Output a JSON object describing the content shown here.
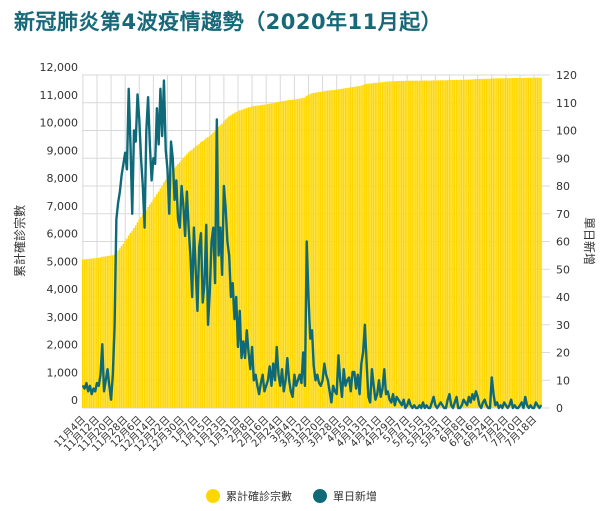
{
  "title": "新冠肺炎第4波疫情趨勢（2020年11月起）",
  "colors": {
    "cumulative": "#FFD700",
    "daily": "#0E6A79",
    "title": "#17697a"
  },
  "chart_data": {
    "type": "bar+line",
    "title": "新冠肺炎第4波疫情趨勢（2020年11月起）",
    "ylabel_left": "累計確診宗數",
    "ylabel_right": "單日新增",
    "ylim_left": [
      0,
      12000
    ],
    "ylim_right": [
      0,
      120
    ],
    "yticks_left": [
      "0",
      "1,000",
      "2,000",
      "3,000",
      "4,000",
      "5,000",
      "6,000",
      "7,000",
      "8,000",
      "9,000",
      "10,000",
      "11,000",
      "12,000"
    ],
    "yticks_right": [
      "0",
      "10",
      "20",
      "30",
      "40",
      "50",
      "60",
      "70",
      "80",
      "90",
      "100",
      "110",
      "120"
    ],
    "x_tick_labels": [
      "11月4日",
      "11月12日",
      "11月20日",
      "11月28日",
      "12月6日",
      "12月14日",
      "12月22日",
      "12月30日",
      "1月7日",
      "1月15日",
      "1月23日",
      "1月31日",
      "2月8日",
      "2月16日",
      "2月24日",
      "3月4日",
      "3月12日",
      "3月20日",
      "3月28日",
      "4月5日",
      "4月13日",
      "4月21日",
      "4月29日",
      "5月7日",
      "5月15日",
      "5月23日",
      "5月31日",
      "6月8日",
      "6月16日",
      "6月24日",
      "7月2日",
      "7月10日",
      "7月18日"
    ],
    "x_tick_every_days": 8,
    "grid": true,
    "legend_position": "bottom",
    "series": [
      {
        "name": "累計確診宗數",
        "type": "bar",
        "axis": "left",
        "start_value": 5350
      },
      {
        "name": "單日新增",
        "type": "line",
        "axis": "right",
        "values": [
          8,
          7,
          9,
          6,
          8,
          5,
          7,
          6,
          9,
          8,
          12,
          23,
          6,
          10,
          14,
          8,
          3,
          12,
          30,
          68,
          74,
          78,
          84,
          88,
          92,
          86,
          115,
          95,
          70,
          100,
          96,
          113,
          104,
          90,
          80,
          65,
          100,
          112,
          95,
          82,
          90,
          88,
          108,
          95,
          115,
          98,
          118,
          93,
          86,
          70,
          96,
          90,
          75,
          82,
          68,
          65,
          80,
          73,
          62,
          78,
          65,
          55,
          40,
          65,
          50,
          35,
          58,
          63,
          38,
          45,
          66,
          30,
          42,
          60,
          65,
          45,
          104,
          55,
          65,
          48,
          80,
          72,
          60,
          55,
          40,
          45,
          32,
          40,
          22,
          35,
          18,
          24,
          18,
          28,
          20,
          14,
          22,
          10,
          12,
          8,
          5,
          9,
          12,
          6,
          8,
          10,
          15,
          8,
          16,
          10,
          22,
          12,
          8,
          14,
          6,
          10,
          18,
          10,
          6,
          4,
          12,
          8,
          10,
          12,
          9,
          20,
          8,
          60,
          40,
          25,
          28,
          15,
          10,
          12,
          9,
          8,
          10,
          16,
          12,
          10,
          6,
          2,
          8,
          6,
          5,
          19,
          10,
          4,
          14,
          8,
          10,
          11,
          6,
          13,
          13,
          7,
          12,
          5,
          16,
          20,
          30,
          16,
          4,
          2,
          14,
          8,
          3,
          5,
          10,
          4,
          7,
          14,
          5,
          6,
          3,
          2,
          5,
          1,
          4,
          3,
          2,
          1,
          3,
          0,
          1,
          3,
          1,
          0,
          1,
          0,
          0,
          1,
          0,
          2,
          0,
          1,
          0,
          0,
          2,
          4,
          1,
          0,
          1,
          2,
          1,
          0,
          0,
          3,
          5,
          1,
          0,
          2,
          4,
          0,
          0,
          1,
          3,
          2,
          1,
          4,
          2,
          5,
          3,
          6,
          4,
          1,
          0,
          2,
          3,
          1,
          0,
          0,
          11,
          5,
          1,
          2,
          0,
          1,
          0,
          2,
          1,
          0,
          1,
          3,
          0,
          1,
          0,
          0,
          1,
          2,
          0,
          4,
          1,
          0,
          1,
          0,
          0,
          2,
          1,
          0,
          1
        ]
      }
    ]
  },
  "legend": [
    {
      "label": "累計確診宗數",
      "color": "#FFD700"
    },
    {
      "label": "單日新增",
      "color": "#0E6A79"
    }
  ]
}
